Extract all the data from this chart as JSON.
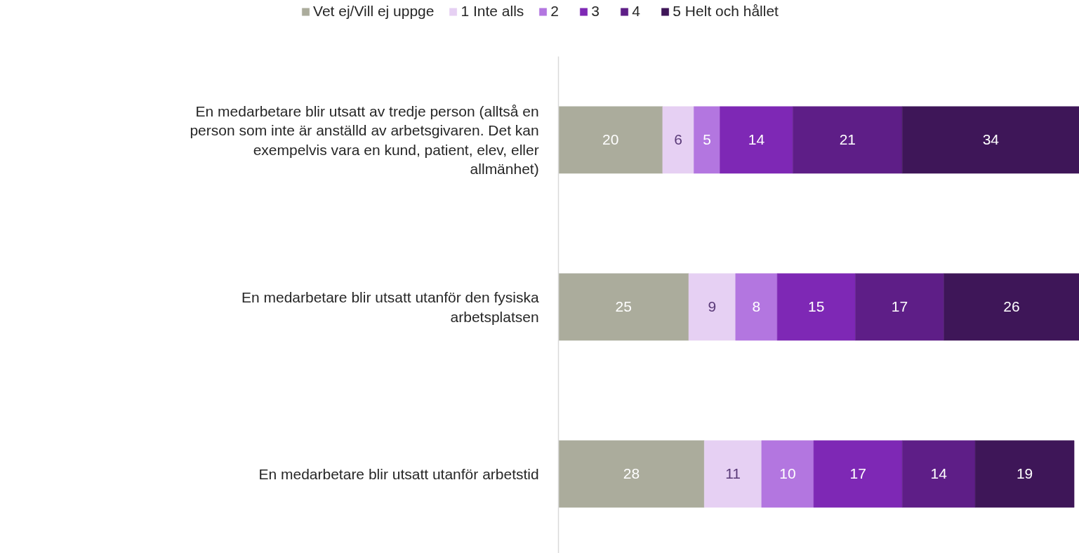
{
  "chart_data": {
    "type": "bar",
    "orientation": "horizontal",
    "stacked": true,
    "data_labels": true,
    "legend": "top",
    "grid": false,
    "categories": [
      "En medarbetare blir utsatt av tredje person (alltså en person som inte är anställd av arbetsgivaren. Det kan exempelvis vara en kund, patient, elev, eller allmänhet)",
      "En medarbetare blir utsatt utanför den fysiska arbetsplatsen",
      "En medarbetare blir utsatt utanför arbetstid"
    ],
    "series": [
      {
        "name": "Vet ej/Vill ej uppge",
        "color": "#abac9c",
        "values": [
          20,
          25,
          28
        ]
      },
      {
        "name": "1 Inte alls",
        "color": "#e6d0f3",
        "values": [
          6,
          9,
          11
        ]
      },
      {
        "name": "2",
        "color": "#b376e0",
        "values": [
          5,
          8,
          10
        ]
      },
      {
        "name": "3",
        "color": "#7e28b5",
        "values": [
          14,
          15,
          17
        ]
      },
      {
        "name": "4",
        "color": "#5e1e87",
        "values": [
          21,
          17,
          14
        ]
      },
      {
        "name": "5 Helt och hållet",
        "color": "#3e1658",
        "values": [
          34,
          26,
          19
        ]
      }
    ]
  }
}
